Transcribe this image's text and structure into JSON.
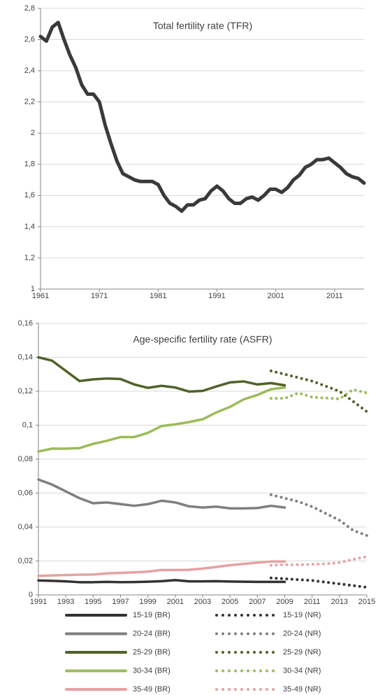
{
  "chart_data": [
    {
      "type": "line",
      "title": "Total fertility rate (TFR)",
      "grid": true,
      "x": [
        1961,
        1962,
        1963,
        1964,
        1965,
        1966,
        1967,
        1968,
        1969,
        1970,
        1971,
        1972,
        1973,
        1974,
        1975,
        1976,
        1977,
        1978,
        1979,
        1980,
        1981,
        1982,
        1983,
        1984,
        1985,
        1986,
        1987,
        1988,
        1989,
        1990,
        1991,
        1992,
        1993,
        1994,
        1995,
        1996,
        1997,
        1998,
        1999,
        2000,
        2001,
        2002,
        2003,
        2004,
        2005,
        2006,
        2007,
        2008,
        2009,
        2010,
        2011,
        2012,
        2013,
        2014,
        2015,
        2016
      ],
      "series": [
        {
          "color": "#3a3a3a",
          "values": [
            2.62,
            2.59,
            2.68,
            2.71,
            2.6,
            2.5,
            2.42,
            2.31,
            2.25,
            2.25,
            2.2,
            2.05,
            1.93,
            1.82,
            1.74,
            1.72,
            1.7,
            1.69,
            1.69,
            1.69,
            1.67,
            1.6,
            1.55,
            1.53,
            1.5,
            1.54,
            1.54,
            1.57,
            1.58,
            1.63,
            1.66,
            1.63,
            1.58,
            1.55,
            1.55,
            1.58,
            1.59,
            1.57,
            1.6,
            1.64,
            1.64,
            1.62,
            1.65,
            1.7,
            1.73,
            1.78,
            1.8,
            1.83,
            1.83,
            1.84,
            1.81,
            1.78,
            1.74,
            1.72,
            1.71,
            1.68
          ]
        }
      ],
      "xlim": [
        1961,
        2016
      ],
      "xticks": [
        1961,
        1971,
        1981,
        1991,
        2001,
        2011
      ],
      "ylim": [
        1,
        2.8
      ],
      "yticks": [
        1,
        {
          "value": 1.2,
          "label": "1,2"
        },
        {
          "value": 1.4,
          "label": "1,4"
        },
        {
          "value": 1.6,
          "label": "1,6"
        },
        {
          "value": 1.8,
          "label": "1,8"
        },
        2,
        {
          "value": 2.2,
          "label": "2,2"
        },
        {
          "value": 2.4,
          "label": "2,4"
        },
        {
          "value": 2.6,
          "label": "2,6"
        },
        {
          "value": 2.8,
          "label": "2,8"
        }
      ]
    },
    {
      "type": "line",
      "title": "Age-specific fertility rate (ASFR)",
      "grid": true,
      "legend": "bottom",
      "x": [
        1991,
        1992,
        1993,
        1994,
        1995,
        1996,
        1997,
        1998,
        1999,
        2000,
        2001,
        2002,
        2003,
        2004,
        2005,
        2006,
        2007,
        2008,
        2009,
        2010,
        2011,
        2012,
        2013,
        2014,
        2015
      ],
      "series": [
        {
          "name": "15-19 (BR)",
          "color": "#333333",
          "style": "solid",
          "values": [
            0.0085,
            0.0083,
            0.008,
            0.0075,
            0.0075,
            0.0077,
            0.0075,
            0.0076,
            0.0078,
            0.0081,
            0.0087,
            0.008,
            0.008,
            0.0081,
            0.0079,
            0.0078,
            0.0077,
            0.0077,
            0.0077,
            null,
            null,
            null,
            null,
            null,
            null
          ]
        },
        {
          "name": "15-19 (NR)",
          "color": "#333333",
          "style": "dotted",
          "values": [
            null,
            null,
            null,
            null,
            null,
            null,
            null,
            null,
            null,
            null,
            null,
            null,
            null,
            null,
            null,
            null,
            null,
            0.01,
            0.0095,
            0.009,
            0.0085,
            0.0075,
            0.0065,
            0.0055,
            0.0045
          ]
        },
        {
          "name": "20-24 (BR)",
          "color": "#7f7f7f",
          "style": "solid",
          "values": [
            0.068,
            0.065,
            0.061,
            0.057,
            0.054,
            0.0545,
            0.0535,
            0.0525,
            0.0535,
            0.0555,
            0.0545,
            0.0522,
            0.0515,
            0.052,
            0.051,
            0.051,
            0.0512,
            0.0525,
            0.0515,
            null,
            null,
            null,
            null,
            null,
            null
          ]
        },
        {
          "name": "20-24 (NR)",
          "color": "#7f7f7f",
          "style": "dotted",
          "values": [
            null,
            null,
            null,
            null,
            null,
            null,
            null,
            null,
            null,
            null,
            null,
            null,
            null,
            null,
            null,
            null,
            null,
            0.059,
            0.057,
            0.055,
            0.052,
            0.048,
            0.044,
            0.038,
            0.035
          ]
        },
        {
          "name": "25-29 (BR)",
          "color": "#4f6228",
          "style": "solid",
          "values": [
            0.14,
            0.138,
            0.132,
            0.126,
            0.127,
            0.1275,
            0.1272,
            0.124,
            0.122,
            0.1232,
            0.1222,
            0.1198,
            0.1202,
            0.1228,
            0.1252,
            0.1258,
            0.124,
            0.1248,
            0.1235,
            null,
            null,
            null,
            null,
            null,
            null
          ]
        },
        {
          "name": "25-29 (NR)",
          "color": "#4f6228",
          "style": "dotted",
          "values": [
            null,
            null,
            null,
            null,
            null,
            null,
            null,
            null,
            null,
            null,
            null,
            null,
            null,
            null,
            null,
            null,
            null,
            0.132,
            0.13,
            0.128,
            0.126,
            0.123,
            0.12,
            0.114,
            0.108
          ]
        },
        {
          "name": "30-34 (BR)",
          "color": "#9bbb59",
          "style": "solid",
          "values": [
            0.0845,
            0.0862,
            0.0862,
            0.0865,
            0.089,
            0.0908,
            0.093,
            0.093,
            0.0955,
            0.0995,
            0.1005,
            0.1018,
            0.1035,
            0.1075,
            0.1108,
            0.1152,
            0.1178,
            0.1212,
            0.1222,
            null,
            null,
            null,
            null,
            null,
            null
          ]
        },
        {
          "name": "30-34 (NR)",
          "color": "#9bbb59",
          "style": "dotted",
          "values": [
            null,
            null,
            null,
            null,
            null,
            null,
            null,
            null,
            null,
            null,
            null,
            null,
            null,
            null,
            null,
            null,
            null,
            0.1158,
            0.1158,
            0.119,
            0.1165,
            0.116,
            0.1155,
            0.121,
            0.119
          ]
        },
        {
          "name": "35-49 (BR)",
          "color": "#e6a1a1",
          "style": "solid",
          "values": [
            0.0112,
            0.0115,
            0.0117,
            0.0119,
            0.012,
            0.0127,
            0.013,
            0.0133,
            0.0137,
            0.0147,
            0.0147,
            0.0148,
            0.0155,
            0.0165,
            0.0175,
            0.0183,
            0.019,
            0.0197,
            0.0197,
            null,
            null,
            null,
            null,
            null,
            null
          ]
        },
        {
          "name": "35-49 (NR)",
          "color": "#e6a1a1",
          "style": "dotted",
          "values": [
            null,
            null,
            null,
            null,
            null,
            null,
            null,
            null,
            null,
            null,
            null,
            null,
            null,
            null,
            null,
            null,
            null,
            0.0175,
            0.0178,
            0.0178,
            0.018,
            0.0183,
            0.019,
            0.021,
            0.0225
          ]
        }
      ],
      "xlim": [
        1991,
        2015
      ],
      "xticks": [
        1991,
        1993,
        1995,
        1997,
        1999,
        2001,
        2003,
        2005,
        2007,
        2009,
        2011,
        2013,
        2015
      ],
      "ylim": [
        0,
        0.16
      ],
      "yticks": [
        0,
        {
          "value": 0.02,
          "label": "0,02"
        },
        {
          "value": 0.04,
          "label": "0,04"
        },
        {
          "value": 0.06,
          "label": "0,06"
        },
        {
          "value": 0.08,
          "label": "0,08"
        },
        {
          "value": 0.1,
          "label": "0,1"
        },
        {
          "value": 0.12,
          "label": "0,12"
        },
        {
          "value": 0.14,
          "label": "0,14"
        },
        {
          "value": 0.16,
          "label": "0,16"
        }
      ]
    }
  ]
}
